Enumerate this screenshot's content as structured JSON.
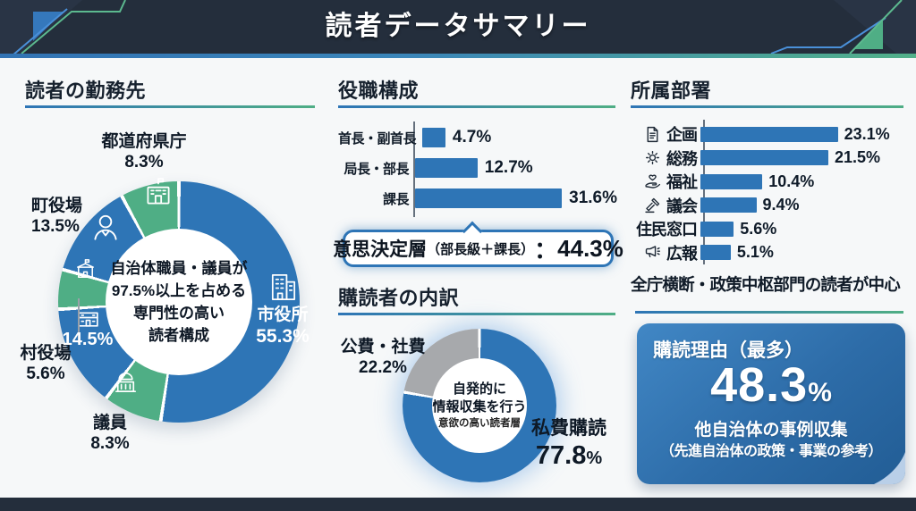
{
  "header": {
    "title": "読者データサマリー"
  },
  "colors": {
    "blue": "#2e75b6",
    "green": "#4fae85",
    "gray": "#a7a9ac",
    "header_bg": "#242e3c"
  },
  "sections": {
    "workplace": {
      "title": "読者の勤務先",
      "center_lines": [
        "自治体職員・議員が",
        "97.5%以上を占める",
        "専門性の高い",
        "読者構成"
      ]
    },
    "positions": {
      "title": "役職構成",
      "callout": {
        "main": "意思決定層",
        "sub": "（部長級＋課長）",
        "colon": "：",
        "value": "44.3%"
      }
    },
    "subscribers": {
      "title": "購読者の内訳",
      "center_lines": [
        "自発的に",
        "情報収集を行う",
        "意欲の高い読者層"
      ]
    },
    "departments": {
      "title": "所属部署",
      "note": "全庁横断・政策中枢部門の読者が中心"
    },
    "reason": {
      "title": "購読理由（最多）",
      "value": "48.3",
      "unit": "%",
      "line1": "他自治体の事例収集",
      "line2": "（先進自治体の政策・事業の参考）"
    }
  },
  "chart_data": [
    {
      "id": "workplace-donut",
      "type": "pie",
      "title": "読者の勤務先",
      "center_text": "自治体職員・議員が97.5%以上を占める専門性の高い読者構成",
      "segments": [
        {
          "label": "市役所",
          "value": 55.3,
          "pct": "55.3%",
          "color": "#2e75b6",
          "icon": "office-building"
        },
        {
          "label": "議員",
          "value": 8.3,
          "pct": "8.3%",
          "color": "#4fae85",
          "icon": "dome-building"
        },
        {
          "label": "",
          "value": 14.5,
          "pct": "14.5%",
          "color": "#2e75b6",
          "icon": "school-building"
        },
        {
          "label": "村役場",
          "value": 5.6,
          "pct": "5.6%",
          "color": "#4fae85",
          "icon": "flag-building"
        },
        {
          "label": "町役場",
          "value": 13.5,
          "pct": "13.5%",
          "color": "#2e75b6",
          "icon": "person"
        },
        {
          "label": "都道府県庁",
          "value": 8.3,
          "pct": "8.3%",
          "color": "#4fae85",
          "icon": "gov-building"
        }
      ]
    },
    {
      "id": "positions-bar",
      "type": "bar",
      "title": "役職構成",
      "categories": [
        "首長・副首長",
        "局長・部長",
        "課長"
      ],
      "values": [
        4.7,
        12.7,
        31.6
      ],
      "value_labels": [
        "4.7%",
        "12.7%",
        "31.6%"
      ],
      "annotation": "意思決定層（部長級＋課長）：44.3%"
    },
    {
      "id": "subscribers-donut",
      "type": "pie",
      "title": "購読者の内訳",
      "center_text": "自発的に情報収集を行う意欲の高い読者層",
      "segments": [
        {
          "label": "私費購読",
          "value": 77.8,
          "num": "77.8",
          "unit": "%",
          "color": "#2e75b6"
        },
        {
          "label": "公費・社費",
          "value": 22.2,
          "pct": "22.2%",
          "color": "#a7a9ac"
        }
      ]
    },
    {
      "id": "departments-bar",
      "type": "bar",
      "title": "所属部署",
      "categories": [
        "企画",
        "総務",
        "福祉",
        "議会",
        "住民窓口",
        "広報"
      ],
      "values": [
        23.1,
        21.5,
        10.4,
        9.4,
        5.6,
        5.1
      ],
      "value_labels": [
        "23.1%",
        "21.5%",
        "10.4%",
        "9.4%",
        "5.6%",
        "5.1%"
      ],
      "icons": [
        "document",
        "gear",
        "heart-hand",
        "gavel",
        "",
        "megaphone"
      ],
      "note": "全庁横断・政策中枢部門の読者が中心"
    }
  ]
}
